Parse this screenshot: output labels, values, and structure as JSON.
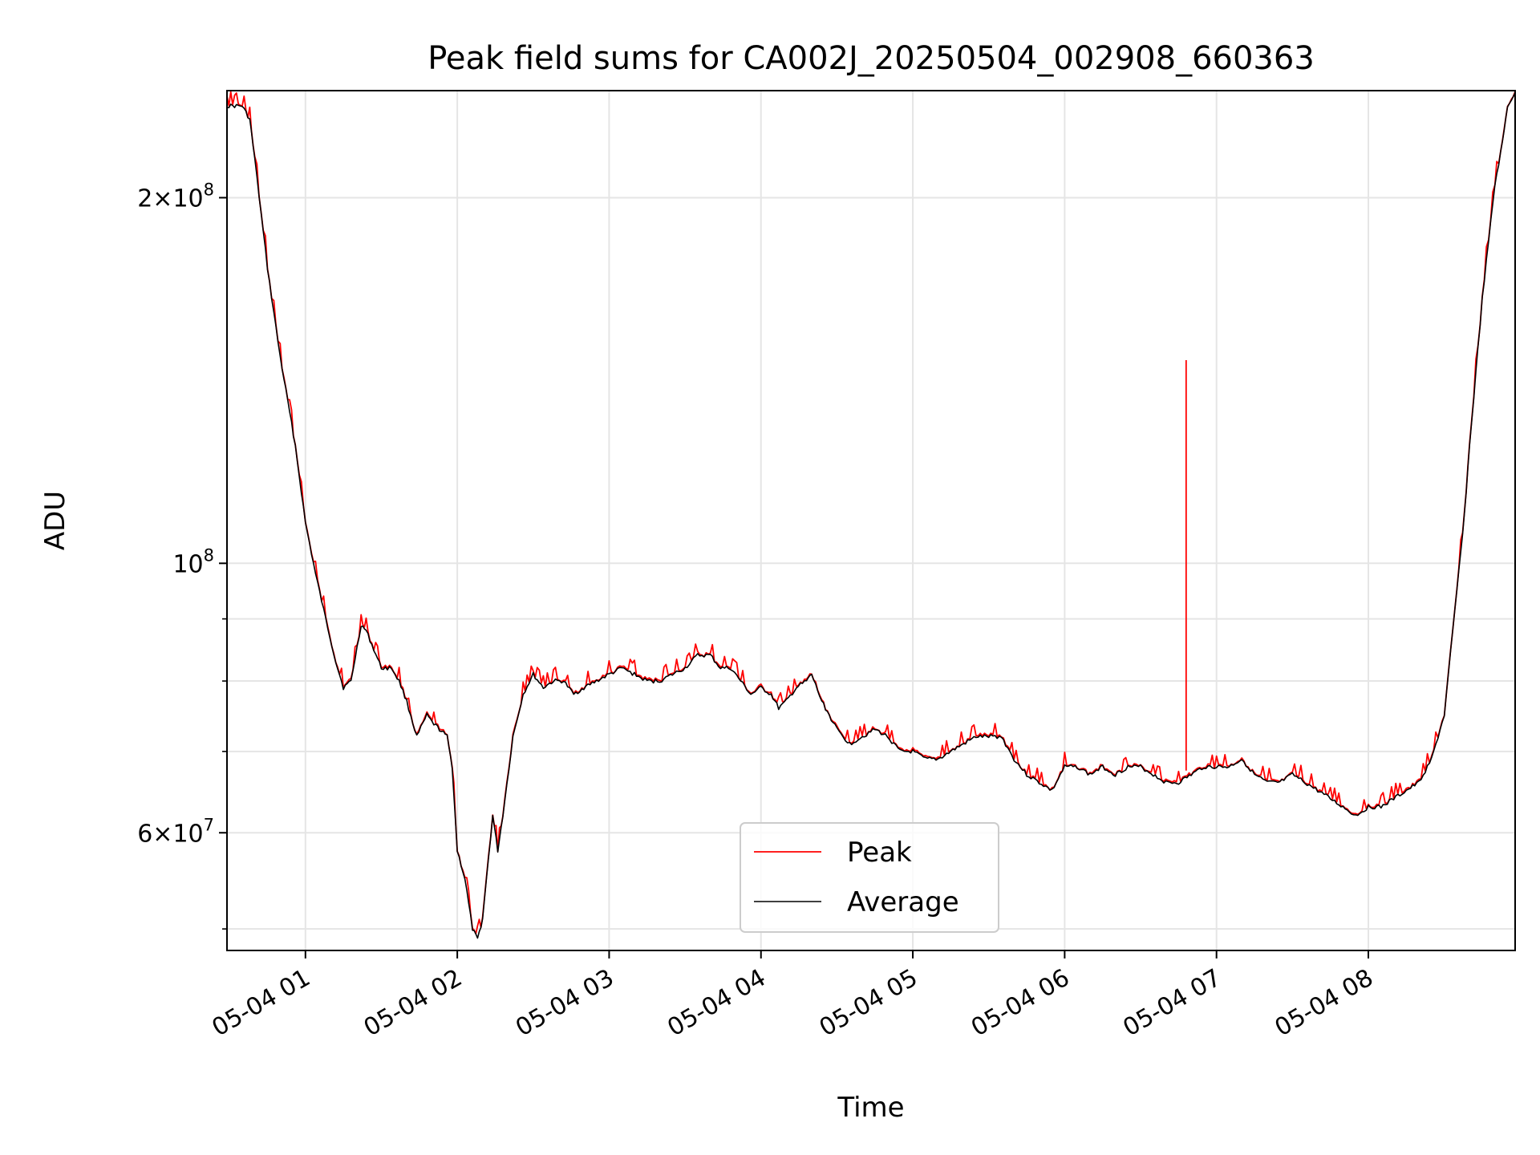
{
  "chart_data": {
    "type": "line",
    "title": "Peak field sums for CA002J_20250504_002908_660363",
    "xlabel": "Time",
    "ylabel": "ADU",
    "x_scale": "time",
    "y_scale": "log",
    "xlim": [
      "2025-05-04 00:29",
      "2025-05-04 08:58"
    ],
    "ylim": [
      48000000,
      245000000
    ],
    "x_ticks": [
      {
        "value": "2025-05-04 01:00",
        "label": "05-04 01"
      },
      {
        "value": "2025-05-04 02:00",
        "label": "05-04 02"
      },
      {
        "value": "2025-05-04 03:00",
        "label": "05-04 03"
      },
      {
        "value": "2025-05-04 04:00",
        "label": "05-04 04"
      },
      {
        "value": "2025-05-04 05:00",
        "label": "05-04 05"
      },
      {
        "value": "2025-05-04 06:00",
        "label": "05-04 06"
      },
      {
        "value": "2025-05-04 07:00",
        "label": "05-04 07"
      },
      {
        "value": "2025-05-04 08:00",
        "label": "05-04 08"
      }
    ],
    "y_major_ticks": [
      {
        "value": 60000000,
        "mantissa": "6",
        "base": "10",
        "exp": "7"
      },
      {
        "value": 100000000,
        "mantissa": "",
        "base": "10",
        "exp": "8"
      },
      {
        "value": 200000000,
        "mantissa": "2",
        "base": "10",
        "exp": "8"
      }
    ],
    "y_minor_ticks": [
      50000000,
      70000000,
      80000000,
      90000000
    ],
    "grid": true,
    "legend_position": "lower-center",
    "series": [
      {
        "name": "Average",
        "color": "#000000",
        "x": [
          "00:29",
          "00:35",
          "00:38",
          "00:40",
          "00:45",
          "00:50",
          "00:56",
          "01:00",
          "01:04",
          "01:08",
          "01:12",
          "01:15",
          "01:18",
          "01:22",
          "01:24",
          "01:30",
          "01:34",
          "01:37",
          "01:40",
          "01:44",
          "01:48",
          "01:50",
          "01:53",
          "01:56",
          "01:58",
          "02:00",
          "02:03",
          "02:06",
          "02:08",
          "02:10",
          "02:14",
          "02:16",
          "02:18",
          "02:22",
          "02:26",
          "02:30",
          "02:34",
          "02:38",
          "02:42",
          "02:46",
          "02:50",
          "02:55",
          "03:00",
          "03:05",
          "03:10",
          "03:15",
          "03:20",
          "03:25",
          "03:30",
          "03:35",
          "03:40",
          "03:44",
          "03:48",
          "03:52",
          "03:56",
          "04:00",
          "04:04",
          "04:07",
          "04:10",
          "04:14",
          "04:18",
          "04:20",
          "04:24",
          "04:30",
          "04:35",
          "04:40",
          "04:45",
          "04:50",
          "04:55",
          "05:00",
          "05:05",
          "05:10",
          "05:15",
          "05:20",
          "05:25",
          "05:30",
          "05:35",
          "05:40",
          "05:45",
          "05:50",
          "05:55",
          "06:00",
          "06:05",
          "06:10",
          "06:15",
          "06:20",
          "06:25",
          "06:30",
          "06:35",
          "06:40",
          "06:45",
          "06:50",
          "06:55",
          "07:00",
          "07:05",
          "07:10",
          "07:15",
          "07:20",
          "07:25",
          "07:30",
          "07:35",
          "07:40",
          "07:45",
          "07:50",
          "07:55",
          "08:00",
          "08:05",
          "08:10",
          "08:15",
          "08:20",
          "08:25",
          "08:30",
          "08:35",
          "08:38",
          "08:40",
          "08:45",
          "08:50",
          "08:53",
          "08:55",
          "08:58"
        ],
        "y": [
          238000000,
          238000000,
          232000000,
          215000000,
          175000000,
          148000000,
          125000000,
          108000000,
          98000000,
          90000000,
          83000000,
          79000000,
          80000000,
          89000000,
          88000000,
          82000000,
          82000000,
          80000000,
          77000000,
          72000000,
          75000000,
          74000000,
          73000000,
          72000000,
          68000000,
          58000000,
          55000000,
          50000000,
          49000000,
          51000000,
          62000000,
          58000000,
          62000000,
          72000000,
          78000000,
          81000000,
          79000000,
          80000000,
          80000000,
          78000000,
          79000000,
          80000000,
          81000000,
          82000000,
          81000000,
          80000000,
          80000000,
          81000000,
          82000000,
          84000000,
          84000000,
          82000000,
          82000000,
          80000000,
          78000000,
          79000000,
          78000000,
          76000000,
          77000000,
          79000000,
          80000000,
          81000000,
          77000000,
          73000000,
          71000000,
          72000000,
          73000000,
          72000000,
          70000000,
          70000000,
          69000000,
          69000000,
          70000000,
          71000000,
          72000000,
          72000000,
          72000000,
          69000000,
          67000000,
          66000000,
          65000000,
          68000000,
          68000000,
          67000000,
          68000000,
          67000000,
          68000000,
          68000000,
          67000000,
          66000000,
          66000000,
          67000000,
          68000000,
          68000000,
          68000000,
          69000000,
          67000000,
          66000000,
          66000000,
          67000000,
          66000000,
          65000000,
          64000000,
          63000000,
          62000000,
          63000000,
          63000000,
          64000000,
          65000000,
          66000000,
          69000000,
          75000000,
          95000000,
          110000000,
          125000000,
          165000000,
          205000000,
          222000000,
          238000000,
          244000000
        ]
      },
      {
        "name": "Peak",
        "color": "#ff0000",
        "spike": {
          "x": "06:48",
          "y": 147000000
        }
      }
    ]
  }
}
